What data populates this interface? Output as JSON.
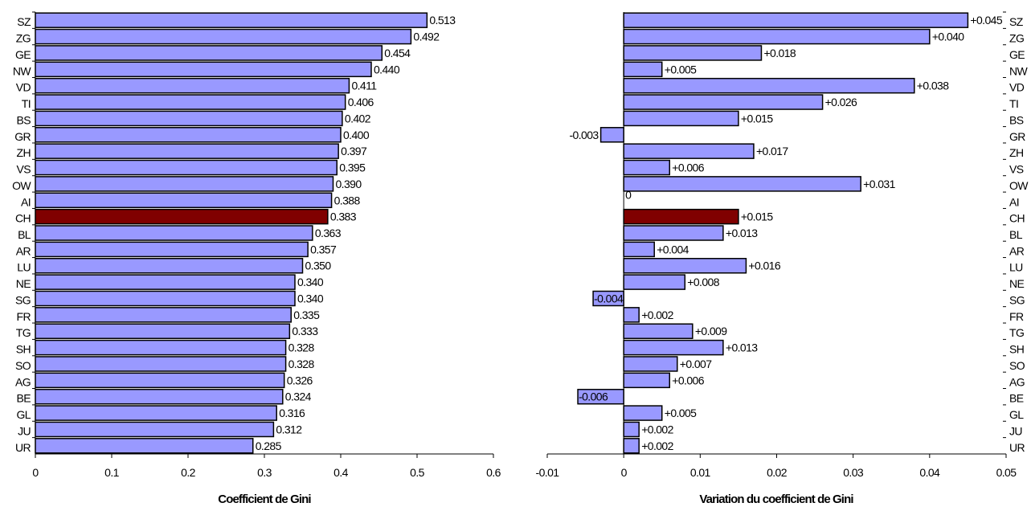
{
  "colors": {
    "bar_fill": "#9999ff",
    "highlight_fill": "#800000",
    "bar_stroke": "#000000",
    "axis": "#000000",
    "background": "#ffffff"
  },
  "chart_data": [
    {
      "type": "bar",
      "orientation": "horizontal",
      "title": "",
      "xlabel": "Coefficient de Gini",
      "ylabel": "",
      "xlim": [
        0,
        0.6
      ],
      "x_ticks": [
        "0",
        "0.1",
        "0.2",
        "0.3",
        "0.4",
        "0.5",
        "0.6"
      ],
      "category_axis_side": "left",
      "grid": false,
      "legend": "none",
      "highlight_category": "CH",
      "categories": [
        "SZ",
        "ZG",
        "GE",
        "NW",
        "VD",
        "TI",
        "BS",
        "GR",
        "ZH",
        "VS",
        "OW",
        "AI",
        "CH",
        "BL",
        "AR",
        "LU",
        "NE",
        "SG",
        "FR",
        "TG",
        "SH",
        "SO",
        "AG",
        "BE",
        "GL",
        "JU",
        "UR"
      ],
      "values": [
        0.513,
        0.492,
        0.454,
        0.44,
        0.411,
        0.406,
        0.402,
        0.4,
        0.397,
        0.395,
        0.39,
        0.388,
        0.383,
        0.363,
        0.357,
        0.35,
        0.34,
        0.34,
        0.335,
        0.333,
        0.328,
        0.328,
        0.326,
        0.324,
        0.316,
        0.312,
        0.285
      ],
      "data_labels": [
        "0.513",
        "0.492",
        "0.454",
        "0.440",
        "0.411",
        "0.406",
        "0.402",
        "0.400",
        "0.397",
        "0.395",
        "0.390",
        "0.388",
        "0.383",
        "0.363",
        "0.357",
        "0.350",
        "0.340",
        "0.340",
        "0.335",
        "0.333",
        "0.328",
        "0.328",
        "0.326",
        "0.324",
        "0.316",
        "0.312",
        "0.285"
      ]
    },
    {
      "type": "bar",
      "orientation": "horizontal",
      "title": "",
      "xlabel": "Variation du coefficient de Gini",
      "ylabel": "",
      "xlim": [
        -0.01,
        0.05
      ],
      "x_ticks": [
        "-0.01",
        "0",
        "0.01",
        "0.02",
        "0.03",
        "0.04",
        "0.05"
      ],
      "category_axis_side": "right",
      "grid": false,
      "legend": "none",
      "highlight_category": "CH",
      "categories": [
        "SZ",
        "ZG",
        "GE",
        "NW",
        "VD",
        "TI",
        "BS",
        "GR",
        "ZH",
        "VS",
        "OW",
        "AI",
        "CH",
        "BL",
        "AR",
        "LU",
        "NE",
        "SG",
        "FR",
        "TG",
        "SH",
        "SO",
        "AG",
        "BE",
        "GL",
        "JU",
        "UR"
      ],
      "values": [
        0.045,
        0.04,
        0.018,
        0.005,
        0.038,
        0.026,
        0.015,
        -0.003,
        0.017,
        0.006,
        0.031,
        0,
        0.015,
        0.013,
        0.004,
        0.016,
        0.008,
        -0.004,
        0.002,
        0.009,
        0.013,
        0.007,
        0.006,
        -0.006,
        0.005,
        0.002,
        0.002
      ],
      "data_labels": [
        "+0.045",
        "+0.040",
        "+0.018",
        "+0.005",
        "+0.038",
        "+0.026",
        "+0.015",
        "-0.003",
        "+0.017",
        "+0.006",
        "+0.031",
        "0",
        "+0.015",
        "+0.013",
        "+0.004",
        "+0.016",
        "+0.008",
        "-0.004",
        "+0.002",
        "+0.009",
        "+0.013",
        "+0.007",
        "+0.006",
        "-0.006",
        "+0.005",
        "+0.002",
        "+0.002"
      ]
    }
  ]
}
